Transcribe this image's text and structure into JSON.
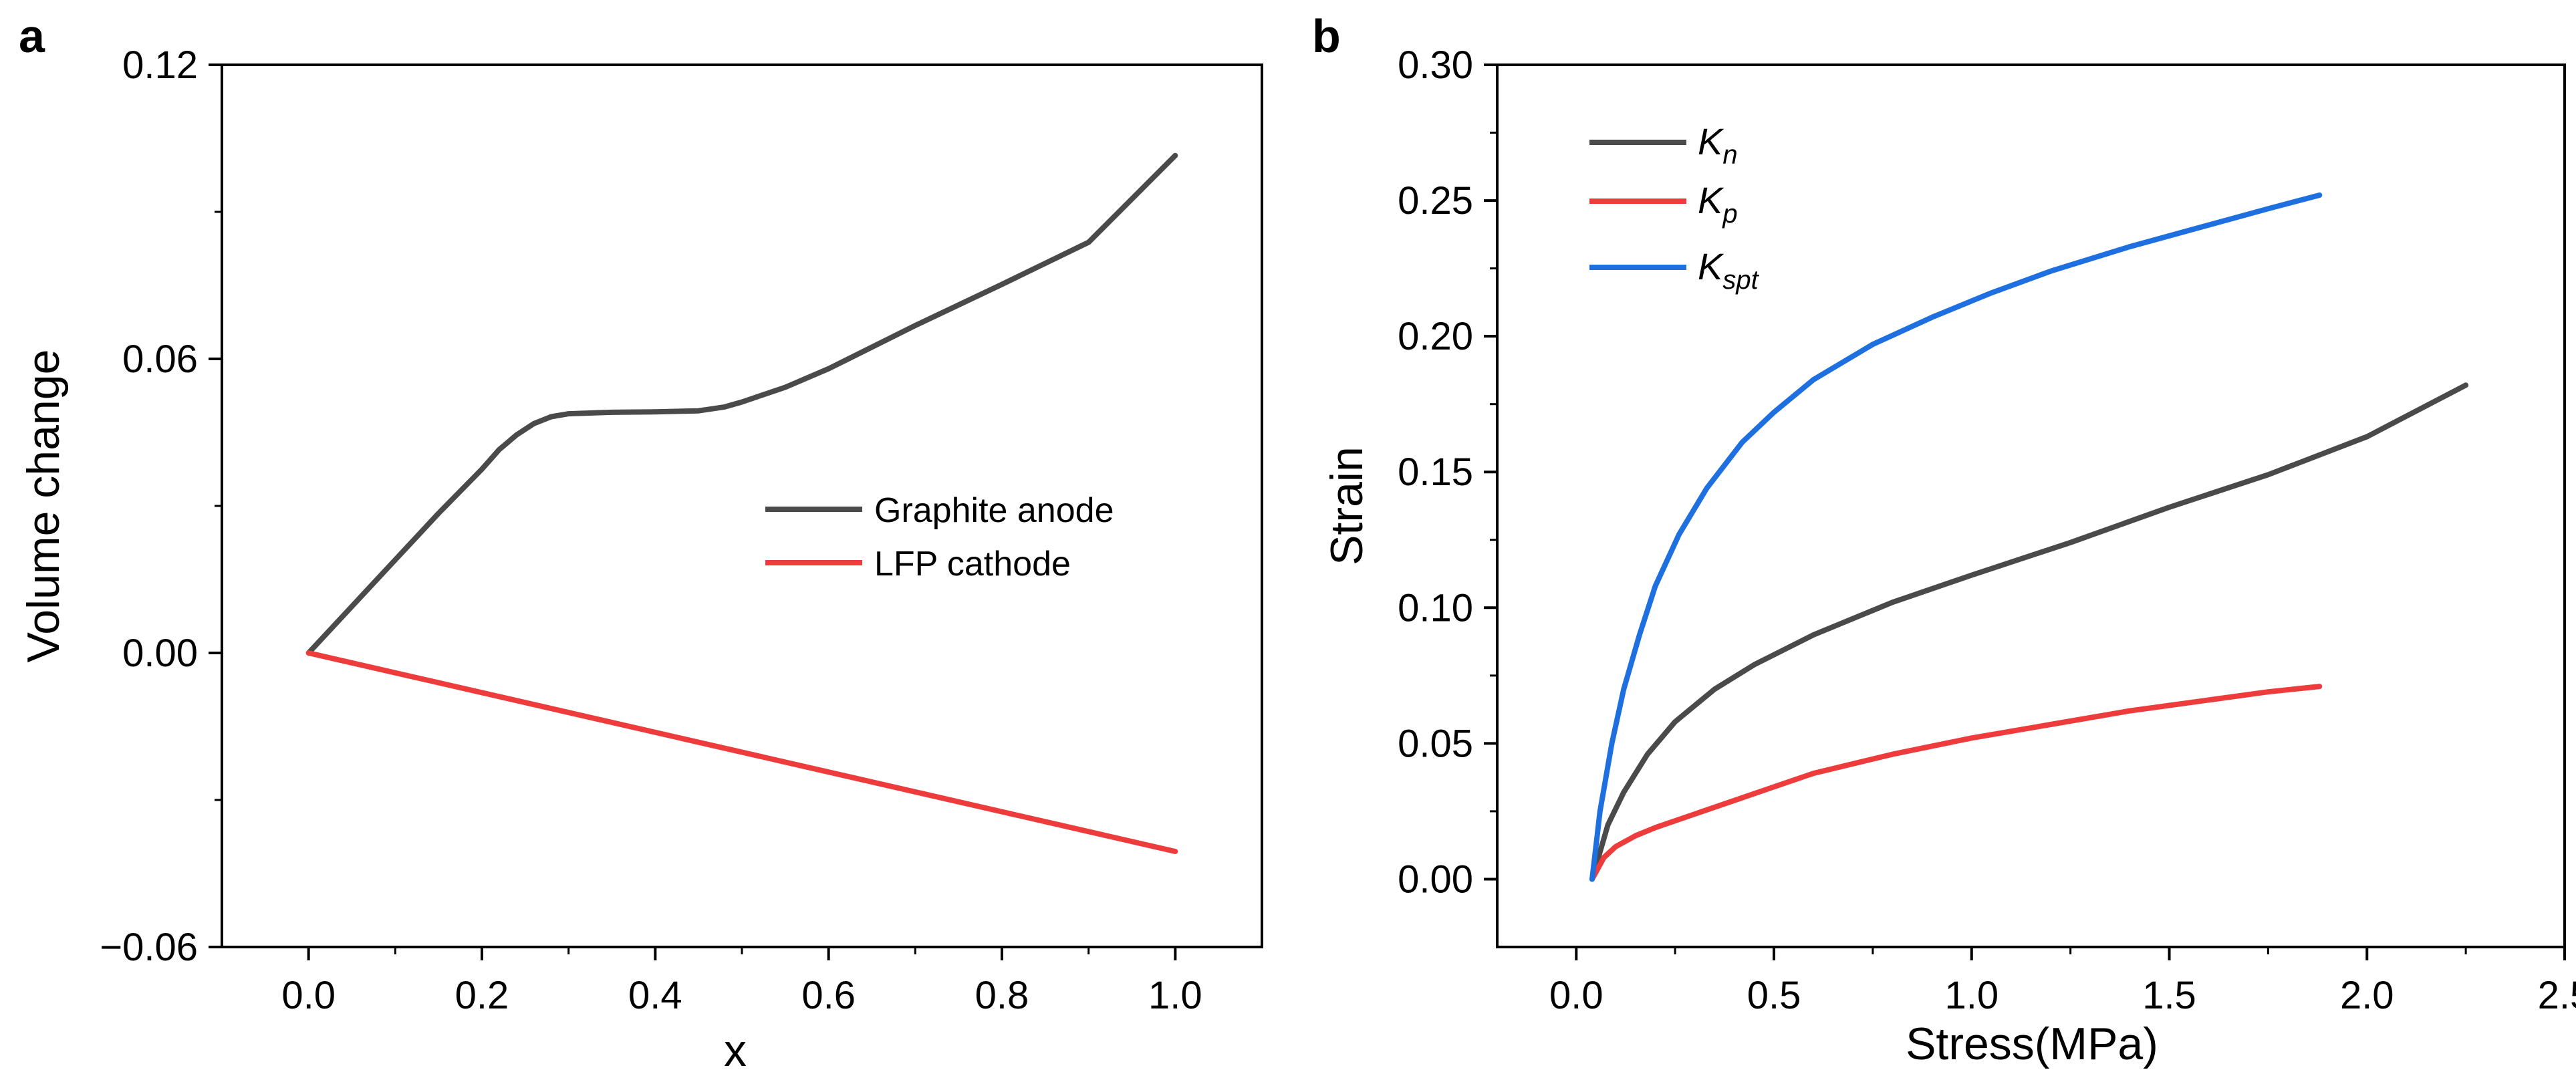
{
  "chart_data": [
    {
      "panel": "a",
      "type": "line",
      "xlabel": "x",
      "ylabel": "Volume change",
      "xlim": [
        -0.1,
        1.1
      ],
      "ylim": [
        -0.06,
        0.12
      ],
      "xticks": [
        0.0,
        0.2,
        0.4,
        0.6,
        0.8,
        1.0
      ],
      "xtick_labels": [
        "0.0",
        "0.2",
        "0.4",
        "0.6",
        "0.8",
        "1.0"
      ],
      "yticks": [
        -0.06,
        0.0,
        0.06,
        0.12
      ],
      "ytick_labels": [
        "−0.06",
        "0.00",
        "0.06",
        "0.12"
      ],
      "legend_position": "center-right",
      "series": [
        {
          "name": "Graphite anode",
          "color": "#4a4a4a",
          "x": [
            0.0,
            0.05,
            0.1,
            0.15,
            0.2,
            0.22,
            0.24,
            0.26,
            0.28,
            0.3,
            0.35,
            0.4,
            0.45,
            0.48,
            0.5,
            0.55,
            0.6,
            0.7,
            0.8,
            0.9,
            1.0
          ],
          "y": [
            0.0,
            0.0095,
            0.019,
            0.0285,
            0.0375,
            0.0415,
            0.0445,
            0.0468,
            0.0482,
            0.0488,
            0.0491,
            0.0492,
            0.0494,
            0.0502,
            0.0512,
            0.0542,
            0.058,
            0.0668,
            0.0752,
            0.0838,
            0.1015
          ]
        },
        {
          "name": "LFP cathode",
          "color": "#ee3b3b",
          "x": [
            0.0,
            1.0
          ],
          "y": [
            0.0,
            -0.0405
          ]
        }
      ]
    },
    {
      "panel": "b",
      "type": "line",
      "xlabel": "Stress(MPa)",
      "ylabel": "Strain",
      "xlim": [
        -0.2,
        2.5
      ],
      "ylim": [
        -0.025,
        0.3
      ],
      "xticks": [
        0.0,
        0.5,
        1.0,
        1.5,
        2.0,
        2.5
      ],
      "xtick_labels": [
        "0.0",
        "0.5",
        "1.0",
        "1.5",
        "2.0",
        "2.5"
      ],
      "yticks": [
        0.0,
        0.05,
        0.1,
        0.15,
        0.2,
        0.25,
        0.3
      ],
      "ytick_labels": [
        "0.00",
        "0.05",
        "0.10",
        "0.15",
        "0.20",
        "0.25",
        "0.30"
      ],
      "legend_position": "top-left",
      "series": [
        {
          "name": "K",
          "subscript": "n",
          "color": "#4a4a4a",
          "x": [
            0.04,
            0.08,
            0.12,
            0.18,
            0.25,
            0.35,
            0.45,
            0.6,
            0.8,
            1.0,
            1.25,
            1.5,
            1.75,
            2.0,
            2.25
          ],
          "y": [
            0.0,
            0.02,
            0.032,
            0.046,
            0.058,
            0.07,
            0.079,
            0.09,
            0.102,
            0.112,
            0.124,
            0.137,
            0.149,
            0.163,
            0.182
          ]
        },
        {
          "name": "K",
          "subscript": "p",
          "color": "#ee3b3b",
          "x": [
            0.04,
            0.07,
            0.1,
            0.15,
            0.2,
            0.3,
            0.4,
            0.5,
            0.6,
            0.8,
            1.0,
            1.2,
            1.4,
            1.6,
            1.75,
            1.88
          ],
          "y": [
            0.0,
            0.008,
            0.012,
            0.016,
            0.019,
            0.024,
            0.029,
            0.034,
            0.039,
            0.046,
            0.052,
            0.057,
            0.062,
            0.066,
            0.069,
            0.071
          ]
        },
        {
          "name": "K",
          "subscript": "spt",
          "color": "#1e6fe0",
          "x": [
            0.04,
            0.06,
            0.09,
            0.12,
            0.16,
            0.2,
            0.26,
            0.33,
            0.42,
            0.5,
            0.6,
            0.75,
            0.9,
            1.05,
            1.2,
            1.4,
            1.6,
            1.75,
            1.88
          ],
          "y": [
            0.0,
            0.025,
            0.05,
            0.07,
            0.09,
            0.108,
            0.127,
            0.144,
            0.161,
            0.172,
            0.184,
            0.197,
            0.207,
            0.216,
            0.224,
            0.233,
            0.241,
            0.247,
            0.252
          ]
        }
      ]
    }
  ]
}
